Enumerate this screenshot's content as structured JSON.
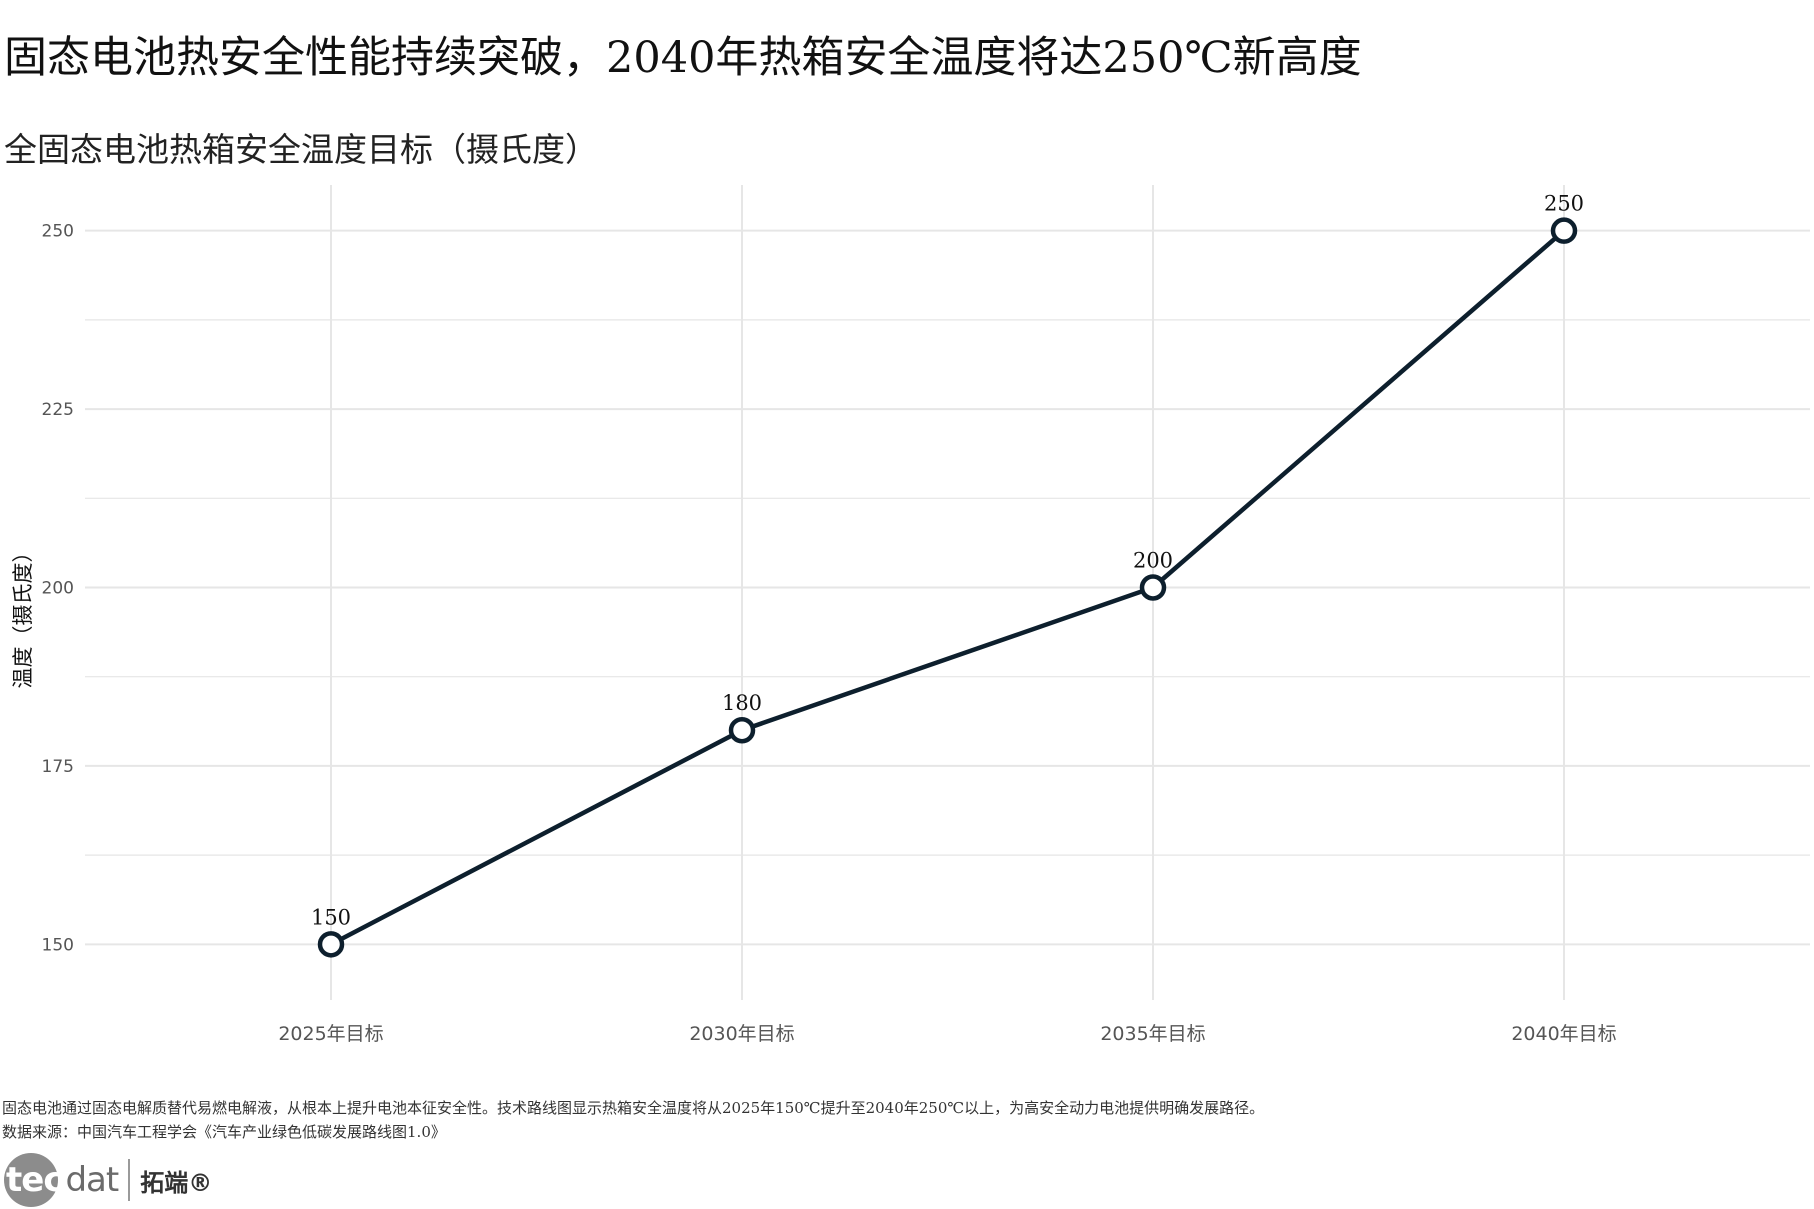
{
  "header": {
    "title": "固态电池热安全性能持续突破，2040年热箱安全温度将达250℃新高度",
    "subtitle": "全固态电池热箱安全温度目标（摄氏度）"
  },
  "chart_data": {
    "type": "line",
    "categories": [
      "2025年目标",
      "2030年目标",
      "2035年目标",
      "2040年目标"
    ],
    "values": [
      150,
      180,
      200,
      250
    ],
    "data_labels": [
      "150",
      "180",
      "200",
      "250"
    ],
    "ylabel": "温度（摄氏度）",
    "xlabel": "",
    "ylim": [
      145,
      255
    ],
    "yticks": [
      150,
      175,
      200,
      225,
      250
    ],
    "ytick_labels": [
      "150",
      "175",
      "200",
      "225",
      "250"
    ],
    "grid": true,
    "legend": "none",
    "line_color": "#0d1f2d",
    "marker_fill": "#ffffff",
    "grid_color": "#e6e6e6"
  },
  "footer": {
    "caption": "固态电池通过固态电解质替代易燃电解液，从根本上提升电池本征安全性。技术路线图显示热箱安全温度将从2025年150℃提升至2040年250℃以上，为高安全动力电池提供明确发展路径。",
    "source": "数据来源：中国汽车工程学会《汽车产业绿色低碳发展路线图1.0》",
    "logo_tec": "tec",
    "logo_dat": "dat",
    "logo_cn": "拓端®"
  }
}
